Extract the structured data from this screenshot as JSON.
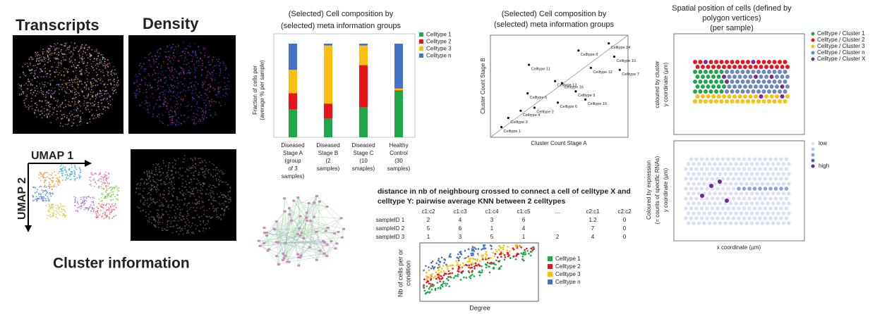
{
  "panel_images": {
    "transcripts_label": "Transcripts",
    "density_label": "Density",
    "umap1_label": "UMAP 1",
    "umap2_label": "UMAP 2",
    "cluster_label": "Cluster information"
  },
  "composition_bar": {
    "type": "bar",
    "title": [
      "(Selected) Cell composition by",
      "(selected) meta information groups"
    ],
    "ylabel": [
      "Fraction of cells per",
      "(average % per sample)"
    ],
    "categories": [
      [
        "Diseased",
        "Stage A",
        "(group",
        "of 3",
        "samples)"
      ],
      [
        "Diseased",
        "Stage B",
        "(2",
        "samples)"
      ],
      [
        "Diseased",
        "Stage C",
        "(10",
        "smaples)"
      ],
      [
        "Healthy",
        "Control",
        "(30",
        "samples)"
      ]
    ],
    "ylim": [
      0,
      100
    ],
    "series": [
      {
        "name": "Celltype 1",
        "color": "#1fa64a",
        "values": [
          30,
          20,
          32,
          49
        ]
      },
      {
        "name": "Celltype 2",
        "color": "#e8141c",
        "values": [
          17,
          16,
          45,
          1
        ]
      },
      {
        "name": "Celltype 3",
        "color": "#fbbf0f",
        "values": [
          25,
          62,
          21,
          2
        ]
      },
      {
        "name": "Celltype n",
        "color": "#4472c4",
        "values": [
          28,
          2,
          2,
          48
        ]
      }
    ]
  },
  "composition_scatter": {
    "type": "scatter",
    "title": [
      "(Selected) Cell composition by",
      "(selected) meta information groups"
    ],
    "xlabel": "Cluster Count Stage A",
    "ylabel": "Cluster Count Stage B",
    "xlim": [
      0,
      100
    ],
    "ylim": [
      0,
      100
    ],
    "points": [
      {
        "label": "Celltype 1",
        "x": 8,
        "y": 10
      },
      {
        "label": "Celltype 3",
        "x": 13,
        "y": 19
      },
      {
        "label": "Celltype 4",
        "x": 22,
        "y": 26
      },
      {
        "label": "Celltype 2",
        "x": 32,
        "y": 29
      },
      {
        "label": "Celltype 6",
        "x": 49,
        "y": 34
      },
      {
        "label": "Celltype 5",
        "x": 27,
        "y": 43
      },
      {
        "label": "Celltype 13",
        "x": 47,
        "y": 55
      },
      {
        "label": "Celltype 11",
        "x": 28,
        "y": 71
      },
      {
        "label": "Celltype 16",
        "x": 52,
        "y": 53
      },
      {
        "label": "Celltype 9",
        "x": 62,
        "y": 45
      },
      {
        "label": "Celltype 15",
        "x": 69,
        "y": 37
      },
      {
        "label": "Celltype 12",
        "x": 73,
        "y": 68
      },
      {
        "label": "Celltype 8",
        "x": 64,
        "y": 85
      },
      {
        "label": "Celltype 14",
        "x": 86,
        "y": 92
      },
      {
        "label": "Celltype 10",
        "x": 90,
        "y": 79
      },
      {
        "label": "Celltype 7",
        "x": 94,
        "y": 66
      }
    ]
  },
  "spatial": {
    "title": [
      "Spatial position of cells (defined by",
      "polygon vertices)",
      "(per sample)"
    ],
    "top_ylabel": [
      "coloured by cluster",
      "y coordinate (µm)"
    ],
    "top_legend": [
      {
        "name": "Celltype / Cluster 1",
        "color": "#1fa64a"
      },
      {
        "name": "Celltype / Cluster 2",
        "color": "#e8141c"
      },
      {
        "name": "Celltype / Cluster 3",
        "color": "#fbbf0f"
      },
      {
        "name": "Celltype / Cluster n",
        "color": "#6d86c0"
      },
      {
        "name": "Celltype / Cluster X",
        "color": "#7a2a90"
      }
    ],
    "bottom_ylabel": [
      "Coloured by expression",
      "(= counts of specific RNAs)",
      "y coordinate (µm)"
    ],
    "bottom_legend": {
      "low": "low",
      "high": "high"
    },
    "xlabel": "x coordinate (µm)"
  },
  "knn_table": {
    "title": [
      "distance in nb of neighbourg crossed to connect a cell of celltype X and",
      "celltype Y: pairwise average KNN between 2 celltypes"
    ],
    "header": [
      "c1:c2",
      "c1:c3",
      "c1:c4",
      "c1:c5",
      "...",
      "c2:c1",
      "c2:c2"
    ],
    "rows": [
      [
        "sampleID 1",
        "2",
        "4",
        "3",
        "6",
        null,
        "1.2",
        "0"
      ],
      [
        "sampleID 2",
        "5",
        "6",
        "1",
        "4",
        null,
        "7",
        "0"
      ],
      [
        "sampleID 3",
        "1",
        "3",
        "5",
        "1",
        "2",
        "4",
        "0"
      ]
    ]
  },
  "degree_scatter": {
    "ylabel": [
      "Nb of cells per or",
      "condition"
    ],
    "xlabel": "Degree",
    "legend": [
      {
        "name": "Celltype 1",
        "color": "#1fa64a"
      },
      {
        "name": "Celltype 2",
        "color": "#e8141c"
      },
      {
        "name": "Celltype 3",
        "color": "#fbbf0f"
      },
      {
        "name": "Celltype n",
        "color": "#4472c4"
      }
    ]
  }
}
